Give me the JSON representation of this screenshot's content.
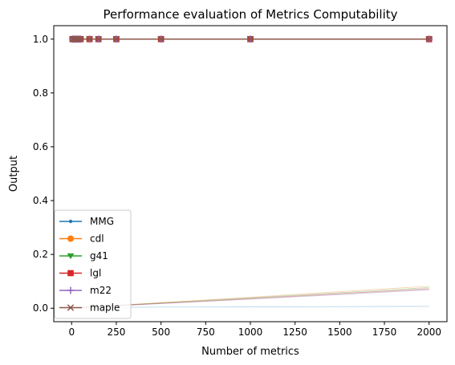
{
  "chart_data": {
    "type": "line",
    "title": "Performance evaluation of Metrics Computability",
    "xlabel": "Number of metrics",
    "ylabel": "Output",
    "xlim": [
      -100,
      2100
    ],
    "ylim": [
      -0.05,
      1.05
    ],
    "x_ticks": [
      0,
      250,
      500,
      750,
      1000,
      1250,
      1500,
      1750,
      2000
    ],
    "y_ticks": [
      0.0,
      0.2,
      0.4,
      0.6,
      0.8,
      1.0
    ],
    "x": [
      5,
      10,
      20,
      30,
      40,
      50,
      100,
      150,
      250,
      500,
      1000,
      2000
    ],
    "legend_position": "lower-left",
    "grid": false,
    "series": [
      {
        "name": "MMG",
        "color": "#1f77b4",
        "marker": "dot",
        "values": [
          1,
          1,
          1,
          1,
          1,
          1,
          1,
          1,
          1,
          1,
          1,
          1
        ],
        "faint_values": [
          0.0005,
          0.0007,
          0.0009,
          0.0012,
          0.0014,
          0.0016,
          0.0025,
          0.003,
          0.0035,
          0.004,
          0.005,
          0.007
        ]
      },
      {
        "name": "cdl",
        "color": "#ff7f0e",
        "marker": "circle",
        "values": [
          1,
          1,
          1,
          1,
          1,
          1,
          1,
          1,
          1,
          1,
          1,
          1
        ],
        "faint_values": [
          0.001,
          0.0015,
          0.002,
          0.0025,
          0.003,
          0.0035,
          0.005,
          0.007,
          0.011,
          0.021,
          0.041,
          0.082
        ]
      },
      {
        "name": "g41",
        "color": "#2ca02c",
        "marker": "triangle-down",
        "values": [
          1,
          1,
          1,
          1,
          1,
          1,
          1,
          1,
          1,
          1,
          1,
          1
        ],
        "faint_values": [
          0.001,
          0.0014,
          0.0019,
          0.0023,
          0.0028,
          0.0032,
          0.0047,
          0.0066,
          0.0104,
          0.0198,
          0.0388,
          0.077
        ]
      },
      {
        "name": "lgl",
        "color": "#d62728",
        "marker": "square",
        "values": [
          1,
          1,
          1,
          1,
          1,
          1,
          1,
          1,
          1,
          1,
          1,
          1
        ],
        "faint_values": [
          0.001,
          0.0013,
          0.0018,
          0.0022,
          0.0026,
          0.003,
          0.0044,
          0.0062,
          0.0098,
          0.0186,
          0.0366,
          0.073
        ]
      },
      {
        "name": "m22",
        "color": "#9467bd",
        "marker": "plus",
        "values": [
          1,
          1,
          1,
          1,
          1,
          1,
          1,
          1,
          1,
          1,
          1,
          1
        ],
        "faint_values": [
          0.0009,
          0.0012,
          0.0016,
          0.002,
          0.0024,
          0.0028,
          0.0041,
          0.0057,
          0.009,
          0.017,
          0.0334,
          0.068
        ]
      },
      {
        "name": "maple",
        "color": "#8c564b",
        "marker": "x",
        "values": [
          1,
          1,
          1,
          1,
          1,
          1,
          1,
          1,
          1,
          1,
          1,
          1
        ],
        "faint_values": [
          0.001,
          0.0013,
          0.0017,
          0.0021,
          0.0025,
          0.0029,
          0.0043,
          0.006,
          0.0095,
          0.018,
          0.035,
          0.071
        ]
      }
    ]
  }
}
